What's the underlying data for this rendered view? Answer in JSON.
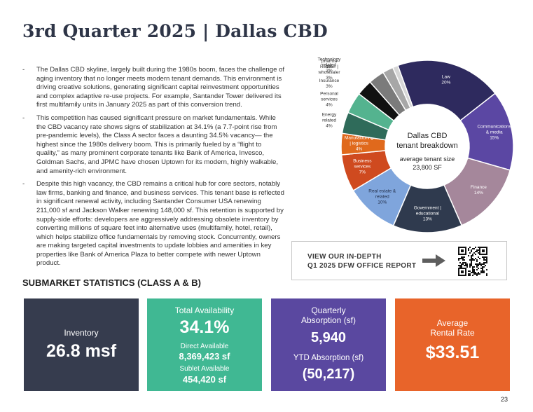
{
  "page": {
    "title": "3rd Quarter 2025 | Dallas CBD",
    "page_number": "23"
  },
  "bullets": [
    {
      "dash": "-",
      "text": "The Dallas CBD skyline, largely built during the 1980s boom, faces the challenge of aging inventory that no longer meets modern tenant demands. This environment is driving creative solutions, generating significant capital reinvestment opportunities and complex adaptive re-use projects. For example, Santander Tower delivered its first multifamily units in January 2025 as part of this conversion trend."
    },
    {
      "dash": "-",
      "text": "This competition has caused significant pressure on market fundamentals. While the CBD vacancy rate shows signs of stabilization at 34.1% (a 7.7-point rise from pre-pandemic levels), the Class A sector faces a daunting 34.5% vacancy— the highest since the 1980s delivery boom. This is primarily fueled by a “flight to quality,” as many prominent corporate tenants like Bank of America, Invesco, Goldman Sachs, and JPMC have chosen Uptown for its modern, highly walkable, and amenity-rich environment."
    },
    {
      "dash": "-",
      "text": "Despite this high vacancy, the CBD remains a critical hub for core sectors, notably law firms, banking and finance, and business services. This tenant base is reflected in significant renewal activity, including Santander Consumer USA renewing 211,000 sf and Jackson Walker renewing 148,000 sf. This retention is supported by supply-side efforts: developers are aggressively addressing obsolete inventory by converting millions of square feet into alternative uses (multifamily, hotel, retail), which helps stabilize office fundamentals by removing stock. Concurrently, owners are making targeted capital investments to update lobbies and amenities in key properties like Bank of America Plaza to better compete with newer Uptown product."
    }
  ],
  "chart_data": {
    "type": "pie",
    "title": "Dallas CBD",
    "subtitle": "tenant breakdown",
    "center_note_label": "average tenant size",
    "center_note_value": "23,800 SF",
    "slices": [
      {
        "name": "Law",
        "value": 20,
        "pct": "20%",
        "color": "#2e2a5e"
      },
      {
        "name": "Communications & media",
        "value": 15,
        "pct": "15%",
        "color": "#5b47a3"
      },
      {
        "name": "Finance",
        "value": 14,
        "pct": "14%",
        "color": "#a5879b"
      },
      {
        "name": "Government | educational",
        "value": 13,
        "pct": "13%",
        "color": "#2f3a4e"
      },
      {
        "name": "Real estate & related",
        "value": 10,
        "pct": "10%",
        "color": "#7fa5dc"
      },
      {
        "name": "Business services",
        "value": 7,
        "pct": "7%",
        "color": "#cf4a1f"
      },
      {
        "name": "Manufacturing | logistics",
        "value": 4,
        "pct": "4%",
        "color": "#e0691c"
      },
      {
        "name": "Energy related",
        "value": 4,
        "pct": "4%",
        "color": "#2f6b5a"
      },
      {
        "name": "Personal services",
        "value": 4,
        "pct": "4%",
        "color": "#54b38f"
      },
      {
        "name": "Insurance",
        "value": 3,
        "pct": "3%",
        "color": "#111111"
      },
      {
        "name": "Retailer | wholesaler",
        "value": 3,
        "pct": "3%",
        "color": "#7b7b7b"
      },
      {
        "name": "Technology related",
        "value": 2,
        "pct": "2%",
        "color": "#a7a7a7"
      },
      {
        "name": "Medical & pharma",
        "value": 1,
        "pct": "1%",
        "color": "#d6d6d6"
      }
    ]
  },
  "report_link": {
    "line1": "VIEW OUR IN-DEPTH",
    "line2": "Q1 2025 DFW OFFICE REPORT",
    "arrow_icon": "arrow-right-icon",
    "qr_icon": "qr-code-icon"
  },
  "stats": {
    "section_title": "SUBMARKET STATISTICS (CLASS A & B)",
    "inventory": {
      "label": "Inventory",
      "value": "26.8 msf",
      "color": "#363c4e"
    },
    "availability": {
      "label": "Total Availability",
      "value": "34.1%",
      "direct_label": "Direct Available",
      "direct_value": "8,369,423 sf",
      "sublet_label": "Sublet Available",
      "sublet_value": "454,420 sf",
      "color": "#40b893"
    },
    "absorption": {
      "label_line1": "Quarterly",
      "label_line2": "Absorption (sf)",
      "value": "5,940",
      "ytd_label": "YTD Absorption (sf)",
      "ytd_value": "(50,217)",
      "color": "#5a48a0"
    },
    "rent": {
      "label_line1": "Average",
      "label_line2": "Rental Rate",
      "value": "$33.51",
      "color": "#e8642a"
    }
  }
}
